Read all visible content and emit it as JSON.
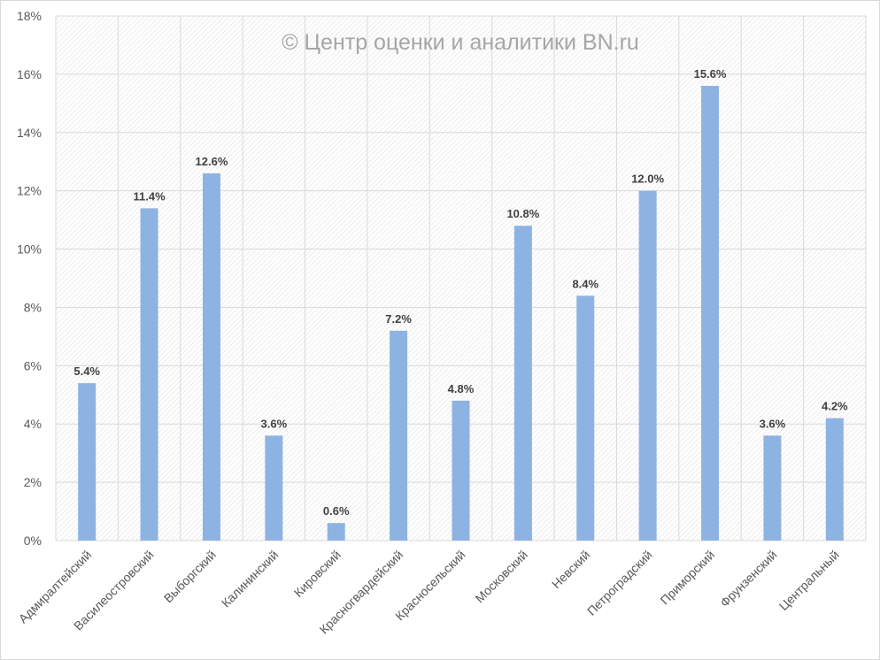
{
  "chart_data": {
    "type": "bar",
    "title": "",
    "watermark": "© Центр оценки и аналитики BN.ru",
    "xlabel": "",
    "ylabel": "",
    "ylim": [
      0,
      18
    ],
    "yticks": [
      "0%",
      "2%",
      "4%",
      "6%",
      "8%",
      "10%",
      "12%",
      "14%",
      "16%",
      "18%"
    ],
    "ytick_values": [
      0,
      2,
      4,
      6,
      8,
      10,
      12,
      14,
      16,
      18
    ],
    "grid": true,
    "legend": "none",
    "categories": [
      "Адмиралтейский",
      "Василеостровский",
      "Выборгский",
      "Калининский",
      "Кировский",
      "Красногвардейский",
      "Красносельский",
      "Московский",
      "Невский",
      "Петроградский",
      "Приморский",
      "Фрунзенский",
      "Центральный"
    ],
    "values": [
      5.4,
      11.4,
      12.6,
      3.6,
      0.6,
      7.2,
      4.8,
      10.8,
      8.4,
      12.0,
      15.6,
      3.6,
      4.2
    ],
    "data_labels": [
      "5.4%",
      "11.4%",
      "12.6%",
      "3.6%",
      "0.6%",
      "7.2%",
      "4.8%",
      "10.8%",
      "8.4%",
      "12.0%",
      "15.6%",
      "3.6%",
      "4.2%"
    ],
    "bar_color": "#8db3e2",
    "grid_color": "#d9d9d9"
  }
}
